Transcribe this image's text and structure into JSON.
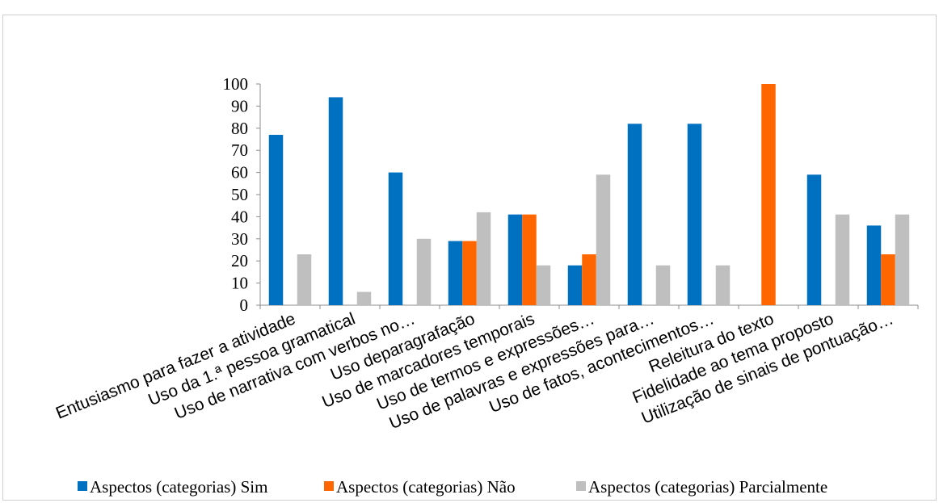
{
  "chart_data": {
    "type": "bar",
    "categories": [
      "Entusiasmo para fazer a atividade",
      "Uso da 1.ª pessoa gramatical",
      "Uso de narrativa com verbos no…",
      "Uso deparagrafação",
      "Uso de marcadores temporais",
      "Uso de termos e expressões…",
      "Uso de palavras  e expressões para…",
      "Uso de fatos, acontecimentos…",
      "Releitura do texto",
      "Fidelidade ao tema proposto",
      "Utilização de sinais de pontuação…"
    ],
    "series": [
      {
        "name": "Aspectos (categorias) Sim",
        "color": "#0070C0",
        "values": [
          77,
          94,
          60,
          29,
          41,
          18,
          82,
          82,
          0,
          59,
          36
        ]
      },
      {
        "name": "Aspectos (categorias) Não",
        "color": "#FF6600",
        "values": [
          0,
          0,
          0,
          29,
          41,
          23,
          0,
          0,
          100,
          0,
          23
        ]
      },
      {
        "name": "Aspectos (categorias) Parcialmente",
        "color": "#BFBFBF",
        "values": [
          23,
          6,
          30,
          42,
          18,
          59,
          18,
          18,
          0,
          41,
          41
        ]
      }
    ],
    "yticks": [
      0,
      10,
      20,
      30,
      40,
      50,
      60,
      70,
      80,
      90,
      100
    ],
    "ylim": [
      0,
      100
    ],
    "grid": false,
    "legend_position": "bottom"
  }
}
